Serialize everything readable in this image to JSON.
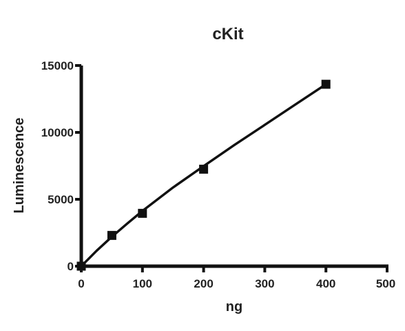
{
  "chart_data": {
    "type": "scatter",
    "title": "cKit",
    "xlabel": "ng",
    "ylabel": "Luminescence",
    "xlim": [
      0,
      500
    ],
    "ylim": [
      0,
      15000
    ],
    "xticks": [
      0,
      100,
      200,
      300,
      400,
      500
    ],
    "yticks": [
      0,
      5000,
      10000,
      15000
    ],
    "xtick_labels": [
      "0",
      "100",
      "200",
      "300",
      "400",
      "500"
    ],
    "ytick_labels": [
      "0",
      "5000",
      "10000",
      "15000"
    ],
    "grid": false,
    "legend": false,
    "marker": "square",
    "color": "#111111",
    "points": [
      {
        "x": 0,
        "y": 0
      },
      {
        "x": 50,
        "y": 2300
      },
      {
        "x": 100,
        "y": 3950
      },
      {
        "x": 200,
        "y": 7250
      },
      {
        "x": 400,
        "y": 13600
      }
    ],
    "fit": {
      "type": "curve",
      "x": [
        0,
        25,
        50,
        75,
        100,
        150,
        200,
        250,
        300,
        350,
        400
      ],
      "y": [
        0,
        1150,
        2200,
        3180,
        4130,
        5880,
        7480,
        9050,
        10560,
        12080,
        13600
      ]
    }
  }
}
